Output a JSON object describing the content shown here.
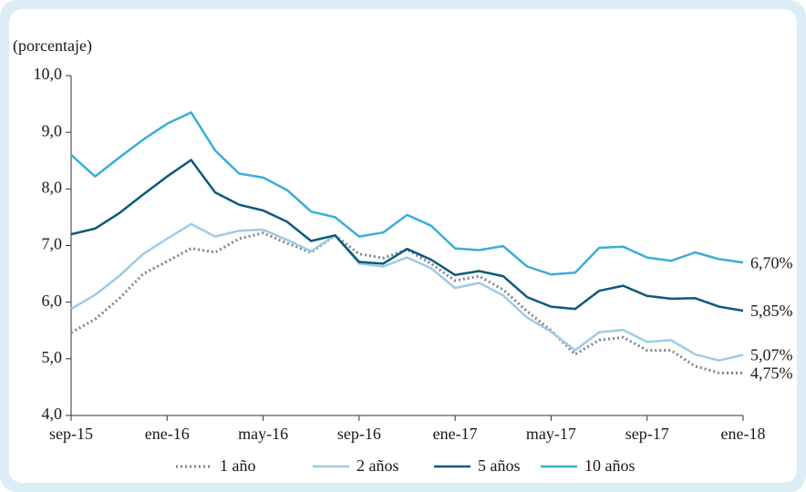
{
  "chart_data": {
    "type": "line",
    "y_label": "(porcentaje)",
    "categories": [
      "sep-15",
      null,
      null,
      null,
      "ene-16",
      null,
      null,
      null,
      "may-16",
      null,
      null,
      null,
      "sep-16",
      null,
      null,
      null,
      "ene-17",
      null,
      null,
      null,
      "may-17",
      null,
      null,
      null,
      "sep-17",
      null,
      null,
      null,
      "ene-18"
    ],
    "ylim": [
      4,
      10
    ],
    "yticks": [
      {
        "value": 4,
        "label": "4,0"
      },
      {
        "value": 5,
        "label": "5,0"
      },
      {
        "value": 6,
        "label": "6,0"
      },
      {
        "value": 7,
        "label": "7,0"
      },
      {
        "value": 8,
        "label": "8,0"
      },
      {
        "value": 9,
        "label": "9,0"
      },
      {
        "value": 10,
        "label": "10,0"
      }
    ],
    "grid": false,
    "legend": "bottom",
    "series": [
      {
        "name": "1 año",
        "color": "#80848f",
        "dash": "dotted",
        "values": [
          5.46,
          5.7,
          6.06,
          6.5,
          6.72,
          6.95,
          6.88,
          7.12,
          7.22,
          7.04,
          6.88,
          7.18,
          6.85,
          6.78,
          6.93,
          6.68,
          6.38,
          6.46,
          6.22,
          5.84,
          5.5,
          5.08,
          5.33,
          5.38,
          5.15,
          5.15,
          4.87,
          4.75,
          4.75
        ],
        "value_labels": [
          null,
          null,
          null,
          null,
          null,
          null,
          null,
          null,
          null,
          null,
          null,
          null,
          null,
          null,
          null,
          null,
          null,
          null,
          null,
          null,
          null,
          null,
          null,
          null,
          null,
          null,
          null,
          null,
          "4,75%"
        ]
      },
      {
        "name": "2 años",
        "color": "#9ecbe6",
        "dash": "solid",
        "values": [
          5.88,
          6.13,
          6.46,
          6.85,
          7.12,
          7.38,
          7.16,
          7.26,
          7.28,
          7.1,
          6.9,
          7.18,
          6.68,
          6.63,
          6.79,
          6.6,
          6.25,
          6.34,
          6.12,
          5.73,
          5.48,
          5.15,
          5.47,
          5.51,
          5.3,
          5.33,
          5.08,
          4.97,
          5.07
        ],
        "value_labels": [
          null,
          null,
          null,
          null,
          null,
          null,
          null,
          null,
          null,
          null,
          null,
          null,
          null,
          null,
          null,
          null,
          null,
          null,
          null,
          null,
          null,
          null,
          null,
          null,
          null,
          null,
          null,
          null,
          "5,07%"
        ]
      },
      {
        "name": "5 años",
        "color": "#0b5a7d",
        "dash": "solid",
        "values": [
          7.2,
          7.3,
          7.57,
          7.9,
          8.22,
          8.51,
          7.94,
          7.72,
          7.62,
          7.42,
          7.08,
          7.18,
          6.71,
          6.68,
          6.94,
          6.75,
          6.48,
          6.55,
          6.46,
          6.09,
          5.92,
          5.88,
          6.2,
          6.29,
          6.11,
          6.06,
          6.07,
          5.92,
          5.85
        ],
        "value_labels": [
          null,
          null,
          null,
          null,
          null,
          null,
          null,
          null,
          null,
          null,
          null,
          null,
          null,
          null,
          null,
          null,
          null,
          null,
          null,
          null,
          null,
          null,
          null,
          null,
          null,
          null,
          null,
          null,
          "5,85%"
        ]
      },
      {
        "name": "10 años",
        "color": "#3aaed8",
        "dash": "solid",
        "values": [
          8.6,
          8.22,
          8.55,
          8.87,
          9.15,
          9.35,
          8.68,
          8.27,
          8.2,
          7.98,
          7.6,
          7.5,
          7.16,
          7.23,
          7.54,
          7.35,
          6.95,
          6.92,
          6.99,
          6.63,
          6.49,
          6.52,
          6.96,
          6.98,
          6.79,
          6.73,
          6.88,
          6.76,
          6.7
        ],
        "value_labels": [
          null,
          null,
          null,
          null,
          null,
          null,
          null,
          null,
          null,
          null,
          null,
          null,
          null,
          null,
          null,
          null,
          null,
          null,
          null,
          null,
          null,
          null,
          null,
          null,
          null,
          null,
          null,
          null,
          "6,70%"
        ]
      }
    ]
  }
}
